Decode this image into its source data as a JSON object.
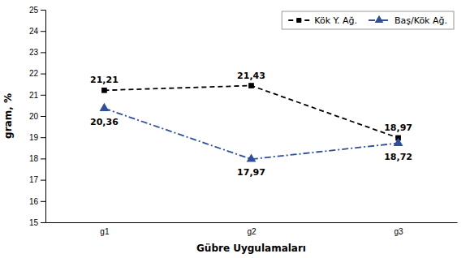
{
  "chart_data": {
    "type": "line",
    "categories": [
      "g1",
      "g2",
      "g3"
    ],
    "series": [
      {
        "name": "Kök Y. Ağ.",
        "color": "#000000",
        "marker": "square",
        "line_style": "dashed",
        "values": [
          21.21,
          21.43,
          18.97
        ],
        "value_labels": [
          "21,21",
          "21,43",
          "18,97"
        ]
      },
      {
        "name": "Baş/Kök Ağ.",
        "color": "#2E4F9E",
        "marker": "triangle",
        "line_style": "dashdot",
        "values": [
          20.36,
          17.97,
          18.72
        ],
        "value_labels": [
          "20,36",
          "17,97",
          "18,72"
        ]
      }
    ],
    "xlabel": "Gübre Uygulamaları",
    "ylabel": "gram, %",
    "ylim": [
      15,
      25
    ],
    "yticks": [
      15,
      16,
      17,
      18,
      19,
      20,
      21,
      22,
      23,
      24,
      25
    ],
    "grid": false,
    "legend": "upper right",
    "data_labels": true
  }
}
